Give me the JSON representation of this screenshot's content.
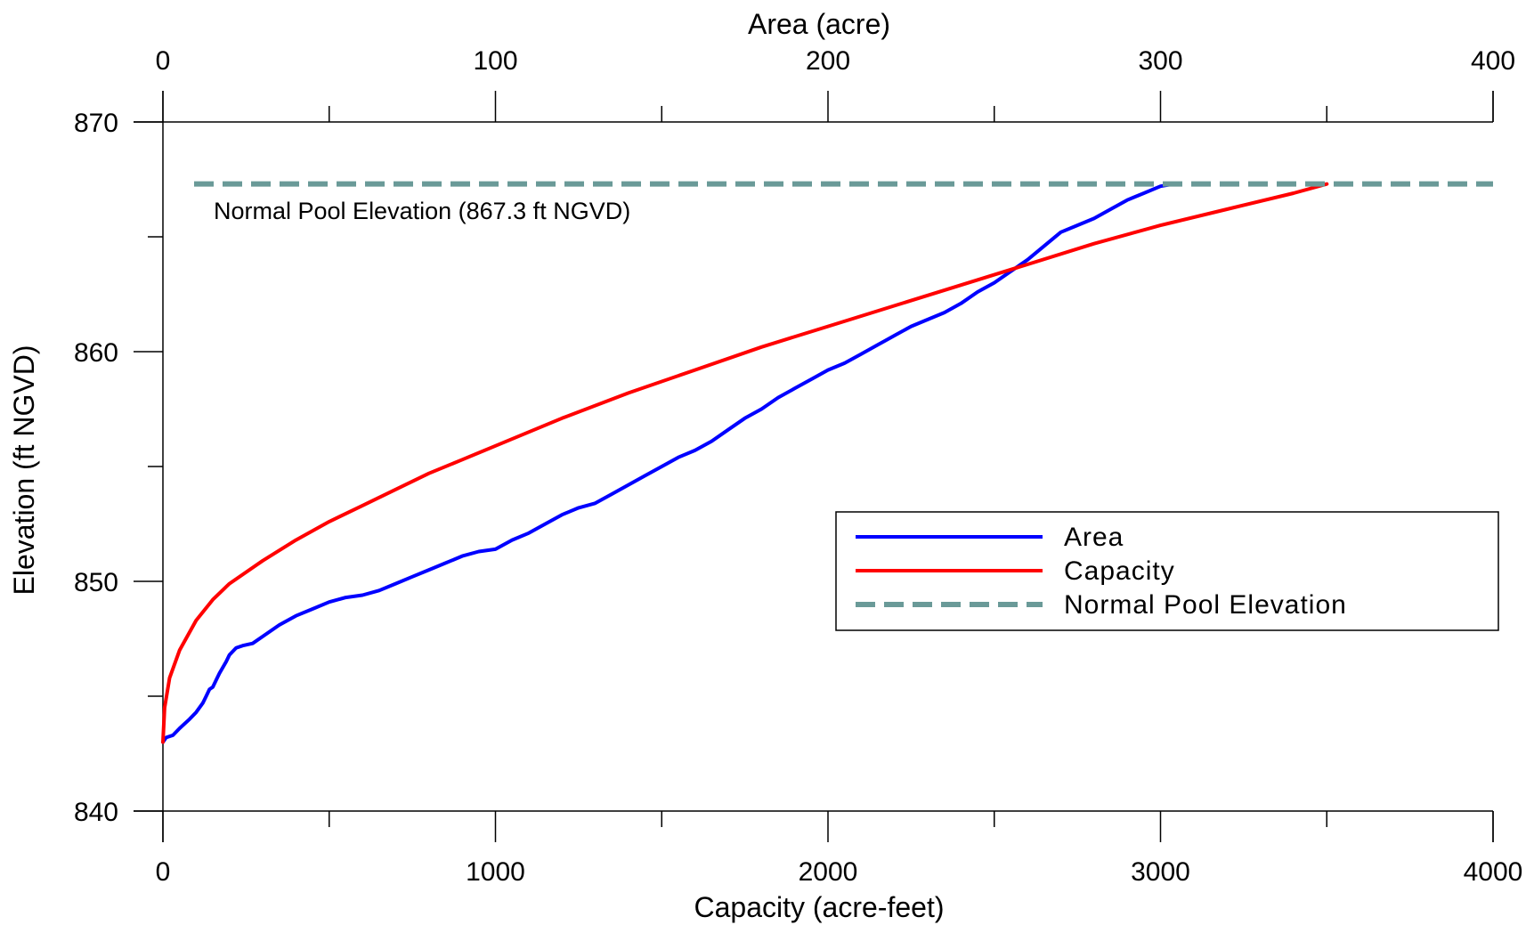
{
  "chart_data": {
    "type": "line",
    "bottom_axis": {
      "label": "Capacity (acre-feet)",
      "range": [
        0,
        4000
      ],
      "major_ticks": [
        0,
        1000,
        2000,
        3000,
        4000
      ],
      "minor_ticks": [
        500,
        1500,
        2500,
        3500
      ]
    },
    "top_axis": {
      "label": "Area (acre)",
      "range": [
        0,
        400
      ],
      "major_ticks": [
        0,
        100,
        200,
        300,
        400
      ],
      "minor_ticks": [
        50,
        150,
        250,
        350
      ]
    },
    "left_axis": {
      "label": "Elevation (ft NGVD)",
      "range": [
        840,
        870
      ],
      "major_ticks": [
        840,
        850,
        860,
        870
      ],
      "minor_ticks": [
        845,
        855,
        865
      ]
    },
    "grid": false,
    "legend_position": "lower-right",
    "series": [
      {
        "name": "Area",
        "axis": "top",
        "color": "#0000ff",
        "style": "solid",
        "points": [
          [
            0,
            843.0
          ],
          [
            1,
            843.2
          ],
          [
            3,
            843.3
          ],
          [
            5,
            843.6
          ],
          [
            8,
            844.0
          ],
          [
            10,
            844.3
          ],
          [
            12,
            844.7
          ],
          [
            13,
            845.0
          ],
          [
            14,
            845.3
          ],
          [
            15,
            845.4
          ],
          [
            17,
            846.0
          ],
          [
            19,
            846.5
          ],
          [
            20,
            846.8
          ],
          [
            22,
            847.1
          ],
          [
            24,
            847.2
          ],
          [
            27,
            847.3
          ],
          [
            30,
            847.6
          ],
          [
            35,
            848.1
          ],
          [
            40,
            848.5
          ],
          [
            45,
            848.8
          ],
          [
            50,
            849.1
          ],
          [
            55,
            849.3
          ],
          [
            60,
            849.4
          ],
          [
            65,
            849.6
          ],
          [
            70,
            849.9
          ],
          [
            75,
            850.2
          ],
          [
            80,
            850.5
          ],
          [
            85,
            850.8
          ],
          [
            90,
            851.1
          ],
          [
            95,
            851.3
          ],
          [
            100,
            851.4
          ],
          [
            105,
            851.8
          ],
          [
            110,
            852.1
          ],
          [
            115,
            852.5
          ],
          [
            120,
            852.9
          ],
          [
            125,
            853.2
          ],
          [
            130,
            853.4
          ],
          [
            135,
            853.8
          ],
          [
            140,
            854.2
          ],
          [
            145,
            854.6
          ],
          [
            150,
            855.0
          ],
          [
            155,
            855.4
          ],
          [
            160,
            855.7
          ],
          [
            165,
            856.1
          ],
          [
            170,
            856.6
          ],
          [
            175,
            857.1
          ],
          [
            180,
            857.5
          ],
          [
            185,
            858.0
          ],
          [
            190,
            858.4
          ],
          [
            195,
            858.8
          ],
          [
            200,
            859.2
          ],
          [
            205,
            859.5
          ],
          [
            210,
            859.9
          ],
          [
            215,
            860.3
          ],
          [
            220,
            860.7
          ],
          [
            225,
            861.1
          ],
          [
            230,
            861.4
          ],
          [
            235,
            861.7
          ],
          [
            240,
            862.1
          ],
          [
            245,
            862.6
          ],
          [
            250,
            863.0
          ],
          [
            255,
            863.5
          ],
          [
            260,
            864.0
          ],
          [
            265,
            864.6
          ],
          [
            270,
            865.2
          ],
          [
            275,
            865.5
          ],
          [
            280,
            865.8
          ],
          [
            285,
            866.2
          ],
          [
            290,
            866.6
          ],
          [
            295,
            866.9
          ],
          [
            300,
            867.2
          ],
          [
            304,
            867.3
          ]
        ]
      },
      {
        "name": "Capacity",
        "axis": "bottom",
        "color": "#ff0000",
        "style": "solid",
        "points": [
          [
            0,
            843.0
          ],
          [
            5,
            844.5
          ],
          [
            20,
            845.8
          ],
          [
            50,
            847.0
          ],
          [
            100,
            848.3
          ],
          [
            150,
            849.2
          ],
          [
            200,
            849.9
          ],
          [
            300,
            850.9
          ],
          [
            400,
            851.8
          ],
          [
            500,
            852.6
          ],
          [
            600,
            853.3
          ],
          [
            700,
            854.0
          ],
          [
            800,
            854.7
          ],
          [
            900,
            855.3
          ],
          [
            1000,
            855.9
          ],
          [
            1200,
            857.1
          ],
          [
            1400,
            858.2
          ],
          [
            1600,
            859.2
          ],
          [
            1800,
            860.2
          ],
          [
            2000,
            861.1
          ],
          [
            2200,
            862.0
          ],
          [
            2400,
            862.9
          ],
          [
            2600,
            863.8
          ],
          [
            2800,
            864.7
          ],
          [
            3000,
            865.5
          ],
          [
            3200,
            866.2
          ],
          [
            3400,
            866.9
          ],
          [
            3500,
            867.3
          ]
        ]
      },
      {
        "name": "Normal Pool Elevation",
        "color": "#6a9a98",
        "style": "dashed",
        "value": 867.3
      }
    ],
    "annotations": [
      {
        "text": "Normal Pool Elevation (867.3 ft NGVD)"
      }
    ]
  },
  "text": {
    "top_title": "Area (acre)",
    "bottom_title": "Capacity (acre-feet)",
    "left_title": "Elevation (ft NGVD)",
    "pool_annotation": "Normal Pool Elevation (867.3 ft NGVD)",
    "legend": [
      "Area",
      "Capacity",
      "Normal Pool Elevation"
    ]
  }
}
